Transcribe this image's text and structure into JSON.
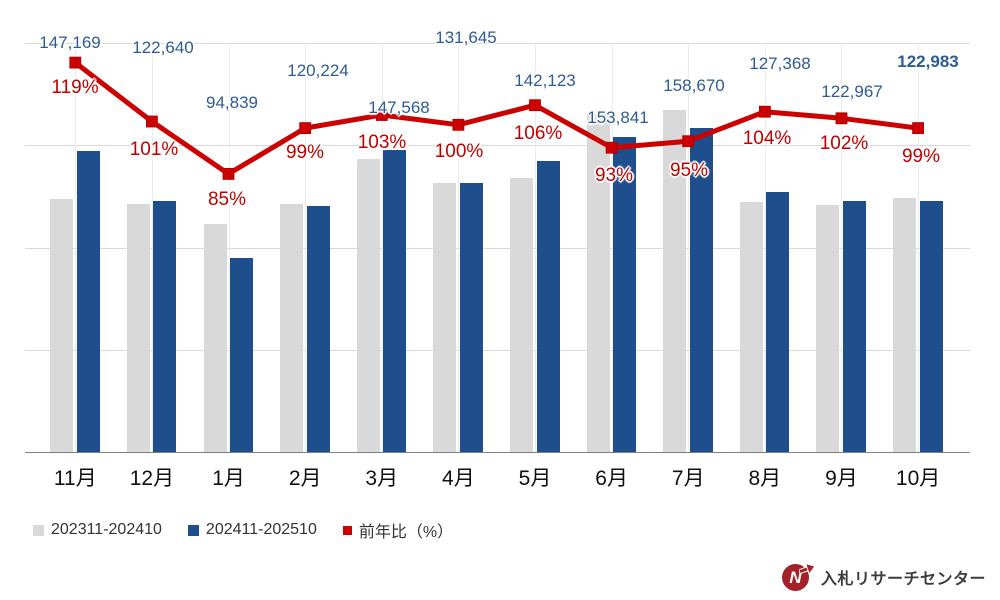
{
  "chart_data": {
    "type": "bar",
    "subtype": "combo-bar-line",
    "title": "",
    "categories": [
      "11月",
      "12月",
      "1月",
      "2月",
      "3月",
      "4月",
      "5月",
      "6月",
      "7月",
      "8月",
      "9月",
      "10月"
    ],
    "series": [
      {
        "name": "202311-202410",
        "kind": "bar",
        "color": "#d9d9d9",
        "axis": "left",
        "values": [
          123671,
          121426,
          111575,
          121438,
          143270,
          131645,
          134078,
          165420,
          167021,
          122469,
          120556,
          124225
        ]
      },
      {
        "name": "202411-202510",
        "kind": "bar",
        "color": "#1f4e8c",
        "axis": "left",
        "values": [
          147169,
          122640,
          94839,
          120224,
          147568,
          131645,
          142123,
          153841,
          158670,
          127368,
          122967,
          122983
        ]
      },
      {
        "name": "前年比（%）",
        "kind": "line",
        "color": "#cc0000",
        "axis": "right",
        "values": [
          119,
          101,
          85,
          99,
          103,
          100,
          106,
          93,
          95,
          104,
          102,
          99
        ]
      }
    ],
    "data_labels": {
      "values": [
        "147,169",
        "122,640",
        "94,839",
        "120,224",
        "147,568",
        "131,645",
        "142,123",
        "153,841",
        "158,670",
        "127,368",
        "122,967",
        "122,983"
      ],
      "percents": [
        "119%",
        "101%",
        "85%",
        "99%",
        "103%",
        "100%",
        "106%",
        "93%",
        "95%",
        "104%",
        "102%",
        "99%"
      ],
      "bold_value_index": 11
    },
    "left_axis": {
      "min": 0,
      "max": 200000,
      "grid_interval": 50000,
      "tick_labels_visible": false
    },
    "right_axis": {
      "min": 0,
      "max": 125,
      "tick_labels_visible": false
    },
    "grid": true,
    "legend_position": "bottom-left"
  },
  "legend": {
    "items": [
      {
        "label": "202311-202410",
        "color": "#d9d9d9"
      },
      {
        "label": "202411-202510",
        "color": "#1f4e8c"
      },
      {
        "label": "前年比（%）",
        "color": "#cc0000"
      }
    ]
  },
  "footer": {
    "logo_letter": "N",
    "logo_text": "入札リサーチセンター"
  },
  "colors": {
    "bar_prev": "#d9d9d9",
    "bar_current": "#1f4e8c",
    "line": "#cc0000",
    "value_label": "#2e5b97",
    "pct_label": "#c00000",
    "gridline": "#d9d9d9",
    "axis_line": "#808080"
  }
}
